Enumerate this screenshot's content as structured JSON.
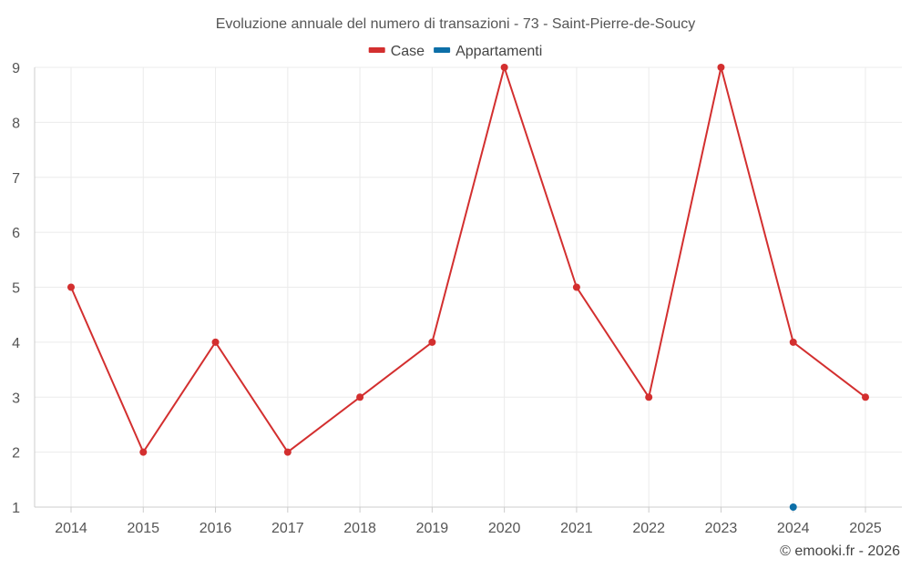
{
  "chart_data": {
    "type": "line",
    "title": "Evoluzione annuale del numero di transazioni - 73 - Saint-Pierre-de-Soucy",
    "categories": [
      "2014",
      "2015",
      "2016",
      "2017",
      "2018",
      "2019",
      "2020",
      "2021",
      "2022",
      "2023",
      "2024",
      "2025"
    ],
    "series": [
      {
        "name": "Case",
        "color": "#d32f2f",
        "values": [
          5,
          2,
          4,
          2,
          3,
          4,
          9,
          5,
          3,
          9,
          4,
          3
        ]
      },
      {
        "name": "Appartamenti",
        "color": "#0d6fa8",
        "values": [
          null,
          null,
          null,
          null,
          null,
          null,
          null,
          null,
          null,
          null,
          1,
          null
        ]
      }
    ],
    "ylim": [
      1,
      9
    ],
    "yticks": [
      "1",
      "2",
      "3",
      "4",
      "5",
      "6",
      "7",
      "8",
      "9"
    ],
    "xlabel": "",
    "ylabel": "",
    "grid": true,
    "legend_position": "top-center"
  },
  "credit": "© emooki.fr - 2026"
}
